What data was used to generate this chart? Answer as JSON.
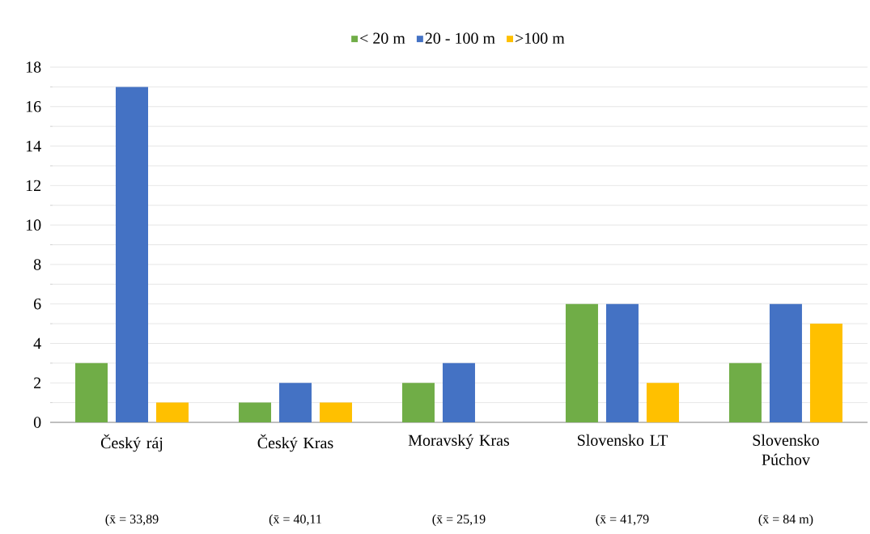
{
  "chart_data": {
    "type": "bar",
    "categories": [
      "Český ráj",
      "Český Kras",
      "Moravský Kras",
      "Slovensko LT",
      "Slovensko Púchov"
    ],
    "series": [
      {
        "name": "< 20 m",
        "color": "#70ad47",
        "values": [
          3,
          1,
          2,
          6,
          3
        ]
      },
      {
        "name": "20 - 100 m",
        "color": "#4472c4",
        "values": [
          17,
          2,
          3,
          6,
          6
        ]
      },
      {
        "name": ">100 m",
        "color": "#ffc000",
        "values": [
          1,
          1,
          0,
          2,
          5
        ]
      }
    ],
    "ylim": [
      0,
      18
    ],
    "yticks": [
      0,
      2,
      4,
      6,
      8,
      10,
      12,
      14,
      16,
      18
    ],
    "grid": "y",
    "legend": "top",
    "annotations": [
      "(x̄ = 33,89",
      "(x̄ = 40,11",
      "(x̄ = 25,19",
      "(x̄ = 41,79",
      "(x̄ = 84 m)"
    ]
  }
}
